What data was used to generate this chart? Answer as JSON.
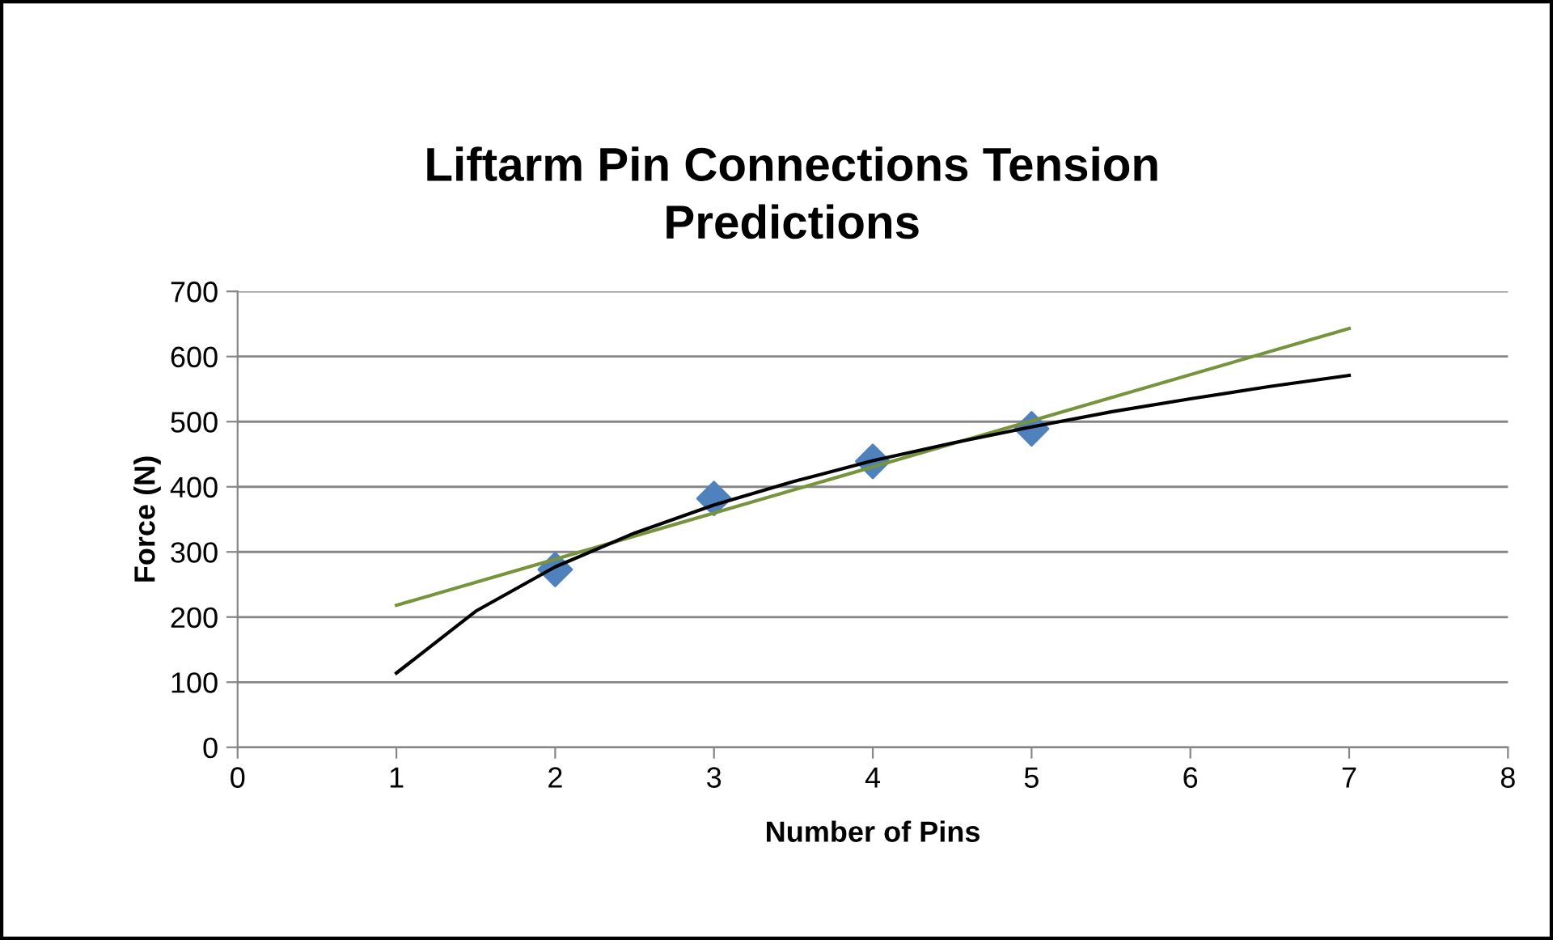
{
  "chart_data": {
    "type": "scatter",
    "title": "Liftarm Pin Connections Tension\nPredictions",
    "xlabel": "Number of Pins",
    "ylabel": "Force (N)",
    "x": [
      2,
      3,
      4,
      5
    ],
    "series": [
      {
        "color": "#4f81bd",
        "marker": "diamond",
        "values": [
          273,
          382,
          439,
          489
        ]
      },
      {
        "type": "line",
        "color": "#77933c",
        "marker": "none",
        "line_style": "solid",
        "x": [
          1,
          7
        ],
        "values": [
          218,
          643
        ]
      },
      {
        "type": "line",
        "color": "#000000",
        "marker": "none",
        "line_style": "solid",
        "x": [
          1,
          1.5,
          2,
          2.5,
          3,
          3.5,
          4,
          4.5,
          5,
          5.5,
          6,
          6.5,
          7
        ],
        "values": [
          114,
          209,
          277,
          329,
          372,
          408,
          440,
          467,
          492,
          515,
          535,
          554,
          571
        ]
      }
    ],
    "xlim": [
      0,
      8
    ],
    "xticks": [
      0,
      1,
      2,
      3,
      4,
      5,
      6,
      7,
      8
    ],
    "ylim": [
      0,
      700
    ],
    "yticks": [
      0,
      100,
      200,
      300,
      400,
      500,
      600,
      700
    ],
    "grid": "y",
    "legend": false
  }
}
